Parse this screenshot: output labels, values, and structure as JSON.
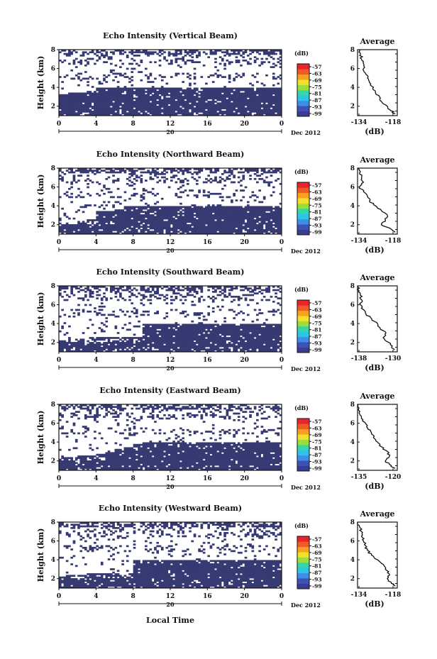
{
  "figure": {
    "xlabel_bottom": "Local Time",
    "day_label": "20",
    "month_label": "Dec 2012",
    "colorbar_unit": "(dB)",
    "colorbar_ticks": [
      "-57",
      "-63",
      "-69",
      "-75",
      "-81",
      "-87",
      "-93",
      "-99"
    ],
    "colorbar_colors": [
      "#3b3b8f",
      "#3f51b5",
      "#3f8ee6",
      "#2ec4e8",
      "#36d6a8",
      "#9cdc3c",
      "#f2e12a",
      "#f7a11e",
      "#f05a28",
      "#e8252a"
    ],
    "panel_bg_fill": "#373a72",
    "line_color": "#111111"
  },
  "chart_data": [
    {
      "type": "heatmap",
      "title": "Echo Intensity (Vertical Beam)",
      "ylabel": "Height (km)",
      "x_ticks": [
        "0",
        "4",
        "8",
        "12",
        "16",
        "20",
        "0"
      ],
      "y_ticks": [
        "8",
        "6",
        "4",
        "2"
      ],
      "xlim": [
        0,
        24
      ],
      "ylim": [
        1,
        8
      ],
      "dense_layer_top_km": [
        3.3,
        3.4,
        3.5,
        3.7,
        3.9,
        4.0,
        4.0,
        4.0,
        4.0,
        4.0,
        4.0,
        4.0,
        4.0,
        4.0,
        4.0,
        4.0,
        4.0,
        4.0,
        4.0,
        4.0,
        4.0,
        4.0,
        4.0,
        4.0
      ],
      "average": {
        "title": "Average",
        "xlabel": "(dB)",
        "x_ticks": [
          "-134",
          "-118"
        ],
        "y_ticks": [
          "8",
          "6",
          "4",
          "2"
        ],
        "xlim": [
          -136,
          -116
        ],
        "ylim": [
          1,
          8
        ],
        "height_km": [
          8.0,
          7.5,
          7.0,
          6.5,
          6.0,
          5.5,
          5.0,
          4.5,
          4.0,
          3.5,
          3.0,
          2.5,
          2.0,
          1.5,
          1.2
        ],
        "value_db": [
          -135,
          -134.5,
          -134,
          -133,
          -133,
          -132,
          -131,
          -130,
          -128,
          -127,
          -125,
          -124,
          -121,
          -119,
          -117
        ]
      }
    },
    {
      "type": "heatmap",
      "title": "Echo Intensity (Northward Beam)",
      "ylabel": "Height (km)",
      "x_ticks": [
        "0",
        "4",
        "8",
        "12",
        "16",
        "20",
        "0"
      ],
      "y_ticks": [
        "8",
        "6",
        "4",
        "2"
      ],
      "xlim": [
        0,
        24
      ],
      "ylim": [
        1,
        8
      ],
      "dense_layer_top_km": [
        2.3,
        2.3,
        2.4,
        2.5,
        3.4,
        3.5,
        3.7,
        3.9,
        4.0,
        4.0,
        4.0,
        4.0,
        4.0,
        4.0,
        4.0,
        4.0,
        4.0,
        4.0,
        4.0,
        4.0,
        4.0,
        4.0,
        4.0,
        4.0
      ],
      "average": {
        "title": "Average",
        "xlabel": "(dB)",
        "x_ticks": [
          "-134",
          "-118"
        ],
        "y_ticks": [
          "8",
          "6",
          "4",
          "2"
        ],
        "xlim": [
          -136,
          -116
        ],
        "ylim": [
          1,
          8
        ],
        "height_km": [
          8.0,
          7.5,
          7.0,
          6.5,
          6.0,
          5.5,
          5.0,
          4.5,
          4.0,
          3.5,
          3.0,
          2.5,
          2.0,
          1.5,
          1.2
        ],
        "value_db": [
          -136,
          -135,
          -134,
          -133,
          -135,
          -133,
          -131,
          -130,
          -127,
          -124,
          -121,
          -122,
          -124,
          -119,
          -117
        ]
      }
    },
    {
      "type": "heatmap",
      "title": "Echo Intensity (Southward Beam)",
      "ylabel": "Height (km)",
      "x_ticks": [
        "0",
        "4",
        "8",
        "12",
        "16",
        "20",
        "0"
      ],
      "y_ticks": [
        "8",
        "6",
        "4",
        "2"
      ],
      "xlim": [
        0,
        24
      ],
      "ylim": [
        1,
        8
      ],
      "dense_layer_top_km": [
        2.3,
        2.3,
        2.4,
        2.4,
        2.5,
        2.5,
        2.5,
        2.5,
        2.6,
        4.0,
        4.0,
        4.0,
        4.0,
        4.0,
        4.0,
        4.0,
        4.0,
        4.0,
        4.0,
        4.0,
        4.0,
        4.0,
        4.0,
        4.0
      ],
      "average": {
        "title": "Average",
        "xlabel": "(dB)",
        "x_ticks": [
          "-138",
          "-130"
        ],
        "y_ticks": [
          "8",
          "6",
          "4",
          "2"
        ],
        "xlim": [
          -140,
          -126
        ],
        "ylim": [
          1,
          8
        ],
        "height_km": [
          8.0,
          7.5,
          7.0,
          6.5,
          6.0,
          5.5,
          5.0,
          4.5,
          4.0,
          3.5,
          3.0,
          2.5,
          2.0,
          1.5,
          1.2
        ],
        "value_db": [
          -140,
          -139.5,
          -139,
          -138.5,
          -139,
          -138,
          -137,
          -135,
          -133,
          -132,
          -130,
          -131,
          -129,
          -128,
          -127
        ]
      }
    },
    {
      "type": "heatmap",
      "title": "Echo Intensity (Eastward Beam)",
      "ylabel": "Height (km)",
      "x_ticks": [
        "0",
        "4",
        "8",
        "12",
        "16",
        "20",
        "0"
      ],
      "y_ticks": [
        "8",
        "6",
        "4",
        "2"
      ],
      "xlim": [
        0,
        24
      ],
      "ylim": [
        1,
        8
      ],
      "dense_layer_top_km": [
        2.4,
        2.4,
        2.5,
        2.6,
        2.7,
        3.0,
        3.2,
        3.5,
        3.8,
        4.0,
        4.0,
        4.0,
        4.0,
        4.0,
        4.0,
        4.0,
        4.0,
        4.0,
        4.0,
        4.0,
        4.0,
        4.0,
        4.0,
        4.0
      ],
      "average": {
        "title": "Average",
        "xlabel": "(dB)",
        "x_ticks": [
          "-135",
          "-120"
        ],
        "y_ticks": [
          "8",
          "6",
          "4",
          "2"
        ],
        "xlim": [
          -138,
          -118
        ],
        "ylim": [
          1,
          8
        ],
        "height_km": [
          8.0,
          7.5,
          7.0,
          6.5,
          6.0,
          5.5,
          5.0,
          4.5,
          4.0,
          3.5,
          3.0,
          2.5,
          2.0,
          1.5,
          1.2
        ],
        "value_db": [
          -138,
          -137.5,
          -137,
          -136,
          -134,
          -133,
          -131,
          -130,
          -128,
          -126,
          -123,
          -122,
          -124,
          -121,
          -119
        ]
      }
    },
    {
      "type": "heatmap",
      "title": "Echo Intensity (Westward Beam)",
      "ylabel": "Height (km)",
      "x_ticks": [
        "0",
        "4",
        "8",
        "12",
        "16",
        "20",
        "0"
      ],
      "y_ticks": [
        "8",
        "6",
        "4",
        "2"
      ],
      "xlim": [
        0,
        24
      ],
      "ylim": [
        1,
        8
      ],
      "dense_layer_top_km": [
        2.3,
        2.4,
        2.4,
        2.5,
        2.5,
        2.5,
        2.6,
        2.6,
        4.0,
        4.0,
        4.0,
        4.0,
        4.0,
        4.0,
        4.0,
        4.0,
        4.0,
        4.0,
        4.0,
        4.0,
        4.0,
        4.0,
        4.0,
        4.0
      ],
      "average": {
        "title": "Average",
        "xlabel": "(dB)",
        "x_ticks": [
          "-134",
          "-118"
        ],
        "y_ticks": [
          "8",
          "6",
          "4",
          "2"
        ],
        "xlim": [
          -136,
          -116
        ],
        "ylim": [
          1,
          8
        ],
        "height_km": [
          8.0,
          7.5,
          7.0,
          6.5,
          6.0,
          5.5,
          5.0,
          4.5,
          4.0,
          3.5,
          3.0,
          2.5,
          2.0,
          1.5,
          1.2
        ],
        "value_db": [
          -136,
          -135,
          -134,
          -134,
          -133,
          -132,
          -131,
          -129,
          -126,
          -123,
          -122,
          -120,
          -121,
          -119,
          -117
        ]
      }
    }
  ]
}
